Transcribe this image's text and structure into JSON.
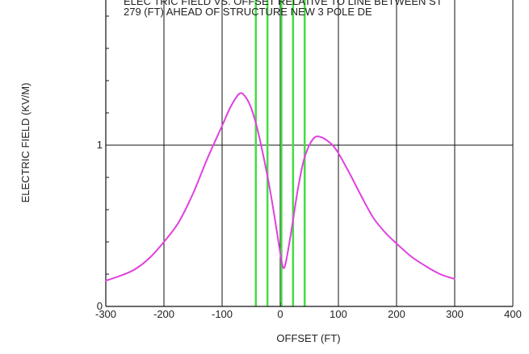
{
  "chart_data": {
    "type": "line",
    "title_lines": [
      "ELEC TRIC FIELD VS. OFFSET RELATIVE TO LINE BETWEEN ST",
      "279 (FT) AHEAD OF STRUCTURE NEW 3 POLE DE"
    ],
    "xlabel": "OFFSET (FT)",
    "ylabel": "ELECTRIC FIELD (KV/M)",
    "xlim": [
      -300,
      400
    ],
    "ylim": [
      0,
      1.9
    ],
    "x_ticks": [
      -300,
      -200,
      -100,
      0,
      100,
      200,
      300,
      400
    ],
    "x_tick_labels": [
      "-300",
      "-200",
      "-100",
      "0",
      "100",
      "200",
      "300",
      "400"
    ],
    "y_ticks": [
      0,
      1
    ],
    "y_tick_labels": [
      "0",
      "1"
    ],
    "grid": true,
    "conductor_lines_x": [
      -42,
      -22,
      2,
      22,
      42
    ],
    "series": [
      {
        "color": "#e040e0",
        "x": [
          -300,
          -275,
          -250,
          -225,
          -200,
          -175,
          -150,
          -125,
          -100,
          -85,
          -70,
          -60,
          -50,
          -40,
          -30,
          -20,
          -10,
          0,
          5,
          10,
          20,
          30,
          40,
          50,
          60,
          70,
          80,
          90,
          100,
          120,
          140,
          160,
          180,
          200,
          225,
          250,
          275,
          300
        ],
        "y": [
          0.16,
          0.19,
          0.23,
          0.3,
          0.4,
          0.52,
          0.7,
          0.92,
          1.12,
          1.24,
          1.32,
          1.3,
          1.23,
          1.11,
          0.95,
          0.77,
          0.56,
          0.33,
          0.24,
          0.28,
          0.49,
          0.72,
          0.9,
          1.0,
          1.05,
          1.05,
          1.03,
          1.0,
          0.95,
          0.82,
          0.68,
          0.55,
          0.46,
          0.39,
          0.31,
          0.25,
          0.2,
          0.17
        ]
      }
    ],
    "conductor_color": "#44dd44",
    "grid_color": "#111111",
    "text_color": "#222222"
  }
}
